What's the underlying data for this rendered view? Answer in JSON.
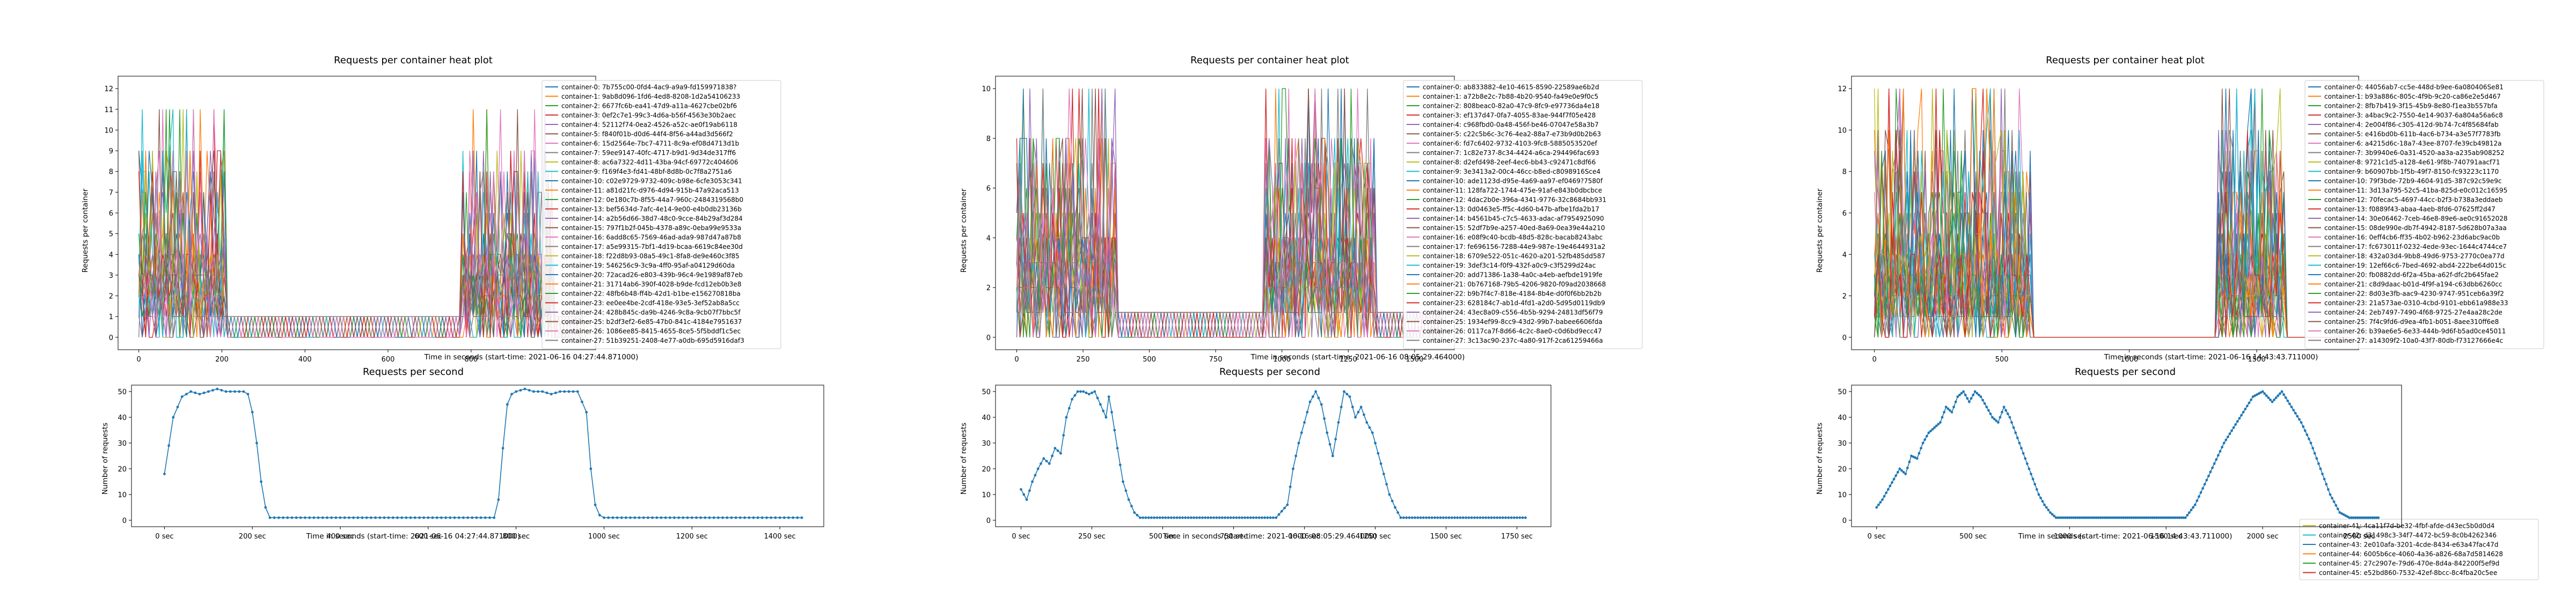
{
  "figures": [
    {
      "heat_title": "Requests per container heat plot",
      "heat_ylabel": "Requests per container",
      "heat_xlabel": "Time in seconds (start-time: 2021-06-16 04:27:44.871000)",
      "rps_title": "Requests per second",
      "rps_ylabel": "Number of requests",
      "rps_xlabel": "Time in seconds (start-time: 2021-06-16 04:27:44.871000)",
      "legend": [
        "container-0: 7b755c00-0fd4-4ac9-a9a9-fd159971838?",
        "container-1: 9ab8d096-1fd6-4ed8-8208-1d2a54106233",
        "container-2: 6677fc6b-ea41-47d9-a11a-4627cbe02bf6",
        "container-3: 0ef2c7e1-99c3-4d6a-b56f-4563e30b2aec",
        "container-4: 52112f74-0ea2-4526-a52c-ae0f19ab6118",
        "container-5: f840f01b-d0d6-44f4-8f56-a44ad3d566f2",
        "container-6: 15d2564e-7bc7-4711-8c9a-ef08d4713d1b",
        "container-7: 59ee9147-40fc-4717-b9d1-9d34de317ff6",
        "container-8: ac6a7322-4d11-43ba-94cf-69772c404606",
        "container-9: f169f4e3-fd41-48bf-8d8b-0c7f8a2751a6",
        "container-10: c02e9729-9732-409c-b98e-6cfe3053c341",
        "container-11: a81d21fc-d976-4d94-915b-47a92aca513",
        "container-12: 0e180c7b-8f55-44a7-960c-2484319568b0",
        "container-13: bef5634d-7afc-4e14-9e00-e4b0db23136b",
        "container-14: a2b56d66-38d7-48c0-9cce-84b29af3d284",
        "container-15: 797f1b2f-045b-4378-a89c-0eba99e9533a",
        "container-16: 6add8c65-7569-46ad-ada9-987d47a87b8",
        "container-17: a5e99315-7bf1-4d19-bcaa-6619c84ee30d",
        "container-18: f22d8b93-08a5-49c1-8fa8-de9e460c3f85",
        "container-19: 546256c9-3c9a-4ff0-95af-a04129d60da",
        "container-20: 72acad26-e803-439b-96c4-9e1989af87eb",
        "container-21: 31714ab6-390f-4028-b9de-fcd12eb0b3e8",
        "container-22: 48fb6b48-ff4b-42d1-b1be-e156270818ba",
        "container-23: ee0ee4be-2cdf-418e-93e5-3ef52ab8a5cc",
        "container-24: 428b845c-da9b-4246-9c8a-9cb07f7bbc5f",
        "container-25: b2df3ef2-6e85-47b0-841c-4184e7951637",
        "container-26: 1086ee85-8415-4655-8ce5-5f5bddf1c5ec",
        "container-27: 51b39251-2408-4e77-a0db-695d5916daf3"
      ],
      "axes": {
        "heat_x_ticks": [
          "0",
          "200",
          "400",
          "600",
          "800"
        ],
        "heat_y_ticks": [
          "0",
          "1",
          "2",
          "3",
          "4",
          "5",
          "6",
          "7",
          "8",
          "9",
          "10",
          "11",
          "12"
        ],
        "rps_x_ticks": [
          "0 sec",
          "200 sec",
          "400 sec",
          "600 sec",
          "800 sec",
          "1000 sec",
          "1200 sec",
          "1400 sec"
        ],
        "rps_y_ticks": [
          "0",
          "10",
          "20",
          "30",
          "40",
          "50"
        ]
      }
    },
    {
      "heat_title": "Requests per container heat plot",
      "heat_ylabel": "Requests per container",
      "heat_xlabel": "Time in seconds (start-time: 2021-06-16 08:05:29.464000)",
      "rps_title": "Requests per second",
      "rps_ylabel": "Number of requests",
      "rps_xlabel": "Time in seconds (start-time: 2021-06-16 08:05:29.464000)",
      "legend": [
        "container-0: ab833882-4e10-4615-8590-22589ae6b2d",
        "container-1: a72b8e2c-7b88-4b20-9540-fa49e0e9f0c5",
        "container-2: 808beac0-82a0-47c9-8fc9-e97736da4e18",
        "container-3: ef137d47-0fa7-4055-83ae-944f7f05e428",
        "container-4: c968fbd0-0a48-456f-be46-07047e58a3b7",
        "container-5: c22c5b6c-3c76-4ea2-88a7-e73b9d0b2b63",
        "container-6: fd7c6402-9732-4103-9fc8-5885053520ef",
        "container-7: 1c82e737-8c34-4424-a6ca-294496fac693",
        "container-8: d2efd498-2eef-4ec6-bb43-c92471c8df66",
        "container-9: 3e3413a2-00c4-46cc-b8ed-c8098916Sce4",
        "container-10: ade1123d-d95e-4a69-aa97-ef0469?7580f",
        "container-11: 128fa722-1744-475e-91af-e843b0dbcbce",
        "container-12: 4dac2b0e-396a-4341-9776-32c8684bb931",
        "container-13: 0d0463e5-ff5c-4d60-b47b-afbe1fda2b17",
        "container-14: b4561b45-c7c5-4633-adac-af7954925090",
        "container-15: 52df7b9e-a257-40ed-8a69-0ea39e44a210",
        "container-16: e08f9c40-bcdb-48d5-828c-bacab8243abc",
        "container-17: fe696156-7288-44e9-987e-19e4644931a2",
        "container-18: 6709e522-051c-4620-a201-52fb485dd587",
        "container-19: 3def3c14-f0f9-432f-a0c9-c3f5299d24ac",
        "container-20: add71386-1a38-4a0c-a4eb-aefbde1919fe",
        "container-21: 0b767168-79b5-4206-9820-f09ad2038668",
        "container-22: b9b7f4c7-818e-4184-8b4e-d0f0f6bb2b2b",
        "container-23: 628184c7-ab1d-4fd1-a2d0-5d95d0119db9",
        "container-24: 43ec8a09-c556-4b5b-9294-24813df56f79",
        "container-25: 1934ef99-8cc9-43d2-99b7-babee6606fda",
        "container-26: 0117ca7f-8d66-4c2c-8ae0-c0d6bd9ecc47",
        "container-27: 3c13ac90-237c-4a80-917f-2ca61259466a"
      ],
      "axes": {
        "heat_x_ticks": [
          "0",
          "250",
          "500",
          "750",
          "1000",
          "1250",
          "1500"
        ],
        "heat_y_ticks": [
          "0",
          "2",
          "4",
          "6",
          "8",
          "10"
        ],
        "rps_x_ticks": [
          "0 sec",
          "250 sec",
          "500 sec",
          "750 sec",
          "1000 sec",
          "1250 sec",
          "1500 sec",
          "1750 sec"
        ],
        "rps_y_ticks": [
          "0",
          "10",
          "20",
          "30",
          "40",
          "50"
        ]
      }
    },
    {
      "heat_title": "Requests per container heat plot",
      "heat_ylabel": "Requests per container",
      "heat_xlabel": "Time in seconds (start-time: 2021-06-16 14:43:43.711000)",
      "rps_title": "Requests per second",
      "rps_ylabel": "Number of requests",
      "rps_xlabel": "Time in seconds (start-time: 2021-06-16 14:43:43.711000)",
      "legend": [
        "container-0: 44056ab7-cc5e-448d-b9ee-6a080406Se81",
        "container-1: b93a886c-805c-4f9b-9c20-ca86e2e5d467",
        "container-2: 8fb7b419-3f15-45b9-8e80-f1ea3b557bfa",
        "container-3: a4bac9c2-7550-4e14-9037-6a804a56a6c8",
        "container-4: 2e004f86-c305-412d-9b74-7c4f85684fab",
        "container-5: e416bd0b-611b-4ac6-b734-a3e57f7783fb",
        "container-6: a4215d6c-18a7-43ee-8707-fe39cb49812a",
        "container-7: 3b9940e6-0a31-4520-aa3a-a235ab908252",
        "container-8: 9721c1d5-a128-4e61-9f8b-740791aacf71",
        "container-9: b60907bb-1f5b-49f7-8150-fc93223c1170",
        "container-10: 79f3bde-72b9-4604-91d5-387c92c59e9c",
        "container-11: 3d13a795-52c5-41ba-825d-e0c012c16595",
        "container-12: 70fecac5-4697-44cc-b2f3-b738a3eddaeb",
        "container-13: f0889f43-abaa-4aeb-8fd6-07625ff2d47",
        "container-14: 30e06462-7ceb-46e8-89e6-ae0c91652028",
        "container-15: 08de990e-db7f-4942-8187-5d628b07a3aa",
        "container-16: 0eff4cb6-ff35-4b02-b962-23d6abc9ac0b",
        "container-17: fc673011f-0232-4ede-93ec-1644c4744ce7",
        "container-18: 432a03d4-9bb8-49d6-9753-2770c0ea77d",
        "container-19: 12ef66c6-7bed-4692-abd4-222be64d015c",
        "container-20: fb0882dd-6f2a-45ba-a62f-dfc2b645fae2",
        "container-21: c8d9daac-b01d-4f9f-a194-c63dbb6260cc",
        "container-22: 8d03e3fb-aac9-4230-9747-951ceb6a39f2",
        "container-23: 21a573ae-0310-4cbd-9101-ebb61a988e33",
        "container-24: 2eb7497-7490-4f68-9725-27e4aa28c2de",
        "container-25: 7f4c9fd6-d9ea-4fb1-b051-8aee310ff6e8",
        "container-26: b39ae6e5-6e33-444b-9d6f-b5ad0ce45011",
        "container-27: a14309f2-10a0-43f7-80db-f73127666e4c",
        "container-41: 4ca11f7d-be32-4fbf-afde-d43ec5b0d0d4",
        "container-42: d31498c3-34f7-4472-bc59-8c0b4262346",
        "container-43: 2e010afa-3201-4cde-8434-e63a47fac47d",
        "container-44: 6005b6ce-4060-4a36-a826-68a7d5814628",
        "container-45: 27c2907e-79d6-470e-8d4a-842200f5ef9d",
        "container-45: e52bd860-7532-42ef-8bcc-8c4fba20c5ee"
      ],
      "axes": {
        "heat_x_ticks": [
          "0",
          "500",
          "1000",
          "1500"
        ],
        "heat_y_ticks": [
          "0",
          "2",
          "4",
          "6",
          "8",
          "10",
          "12"
        ],
        "rps_x_ticks": [
          "0 sec",
          "500 sec",
          "1000 sec",
          "1500 sec",
          "2000 sec",
          "2500 sec"
        ],
        "rps_y_ticks": [
          "0",
          "10",
          "20",
          "30",
          "40",
          "50"
        ]
      }
    }
  ],
  "colors": [
    "#1f77b4",
    "#ff7f0e",
    "#2ca02c",
    "#d62728",
    "#9467bd",
    "#8c564b",
    "#e377c2",
    "#7f7f7f",
    "#bcbd22",
    "#17becf"
  ],
  "chart_data": [
    {
      "type": "line",
      "title": "Requests per container heat plot",
      "xlabel": "Time in seconds (start-time: 2021-06-16 04:27:44.871000)",
      "ylabel": "Requests per container",
      "xlim": [
        -50,
        1100
      ],
      "ylim": [
        -0.6,
        12.6
      ],
      "series_count": 28,
      "profile": {
        "active_ranges": [
          [
            0,
            210
          ],
          [
            780,
            1000
          ]
        ],
        "baseline": 1,
        "peak": 11
      },
      "legend_placement": "top-right"
    },
    {
      "type": "line",
      "title": "Requests per second",
      "xlabel": "Time in seconds (start-time: 2021-06-16 04:27:44.871000)",
      "ylabel": "Number of requests",
      "xlim": [
        -75,
        1500
      ],
      "ylim": [
        -2.5,
        52.5
      ],
      "markers": true,
      "points": [
        [
          0,
          18
        ],
        [
          20,
          40
        ],
        [
          40,
          48
        ],
        [
          60,
          50
        ],
        [
          80,
          49
        ],
        [
          100,
          50
        ],
        [
          120,
          51
        ],
        [
          140,
          50
        ],
        [
          160,
          50
        ],
        [
          180,
          50
        ],
        [
          190,
          49
        ],
        [
          200,
          42
        ],
        [
          210,
          30
        ],
        [
          220,
          15
        ],
        [
          230,
          5
        ],
        [
          240,
          1
        ],
        [
          260,
          1
        ],
        [
          300,
          1
        ],
        [
          400,
          1
        ],
        [
          500,
          1
        ],
        [
          600,
          1
        ],
        [
          700,
          1
        ],
        [
          750,
          1
        ],
        [
          760,
          8
        ],
        [
          770,
          28
        ],
        [
          780,
          45
        ],
        [
          790,
          49
        ],
        [
          800,
          50
        ],
        [
          820,
          51
        ],
        [
          840,
          50
        ],
        [
          860,
          50
        ],
        [
          880,
          49
        ],
        [
          900,
          50
        ],
        [
          920,
          50
        ],
        [
          940,
          50
        ],
        [
          960,
          42
        ],
        [
          970,
          20
        ],
        [
          980,
          6
        ],
        [
          990,
          2
        ],
        [
          1000,
          1
        ],
        [
          1100,
          1
        ],
        [
          1200,
          1
        ],
        [
          1300,
          1
        ],
        [
          1400,
          1
        ],
        [
          1450,
          1
        ]
      ]
    },
    {
      "type": "line",
      "title": "Requests per container heat plot",
      "xlabel": "Time in seconds (start-time: 2021-06-16 08:05:29.464000)",
      "ylabel": "Requests per container",
      "xlim": [
        -80,
        1650
      ],
      "ylim": [
        -0.5,
        10.5
      ],
      "series_count": 28,
      "profile": {
        "active_ranges": [
          [
            0,
            380
          ],
          [
            930,
            1350
          ]
        ],
        "baseline": 1,
        "peak": 10
      },
      "legend_placement": "top-right"
    },
    {
      "type": "line",
      "title": "Requests per second",
      "xlabel": "Time in seconds (start-time: 2021-06-16 08:05:29.464000)",
      "ylabel": "Number of requests",
      "xlim": [
        -90,
        1870
      ],
      "ylim": [
        -2.5,
        52.5
      ],
      "markers": true,
      "points": [
        [
          0,
          12
        ],
        [
          20,
          8
        ],
        [
          40,
          15
        ],
        [
          60,
          20
        ],
        [
          80,
          24
        ],
        [
          100,
          22
        ],
        [
          120,
          28
        ],
        [
          140,
          26
        ],
        [
          160,
          40
        ],
        [
          180,
          47
        ],
        [
          200,
          50
        ],
        [
          220,
          50
        ],
        [
          240,
          49
        ],
        [
          260,
          50
        ],
        [
          280,
          45
        ],
        [
          300,
          40
        ],
        [
          310,
          48
        ],
        [
          320,
          42
        ],
        [
          340,
          28
        ],
        [
          360,
          15
        ],
        [
          380,
          8
        ],
        [
          400,
          3
        ],
        [
          420,
          1
        ],
        [
          500,
          1
        ],
        [
          600,
          1
        ],
        [
          700,
          1
        ],
        [
          800,
          1
        ],
        [
          900,
          1
        ],
        [
          940,
          6
        ],
        [
          960,
          20
        ],
        [
          980,
          30
        ],
        [
          1000,
          38
        ],
        [
          1020,
          46
        ],
        [
          1040,
          50
        ],
        [
          1060,
          45
        ],
        [
          1080,
          34
        ],
        [
          1100,
          25
        ],
        [
          1120,
          38
        ],
        [
          1140,
          50
        ],
        [
          1160,
          48
        ],
        [
          1180,
          40
        ],
        [
          1200,
          44
        ],
        [
          1220,
          38
        ],
        [
          1240,
          34
        ],
        [
          1260,
          26
        ],
        [
          1280,
          18
        ],
        [
          1300,
          10
        ],
        [
          1320,
          5
        ],
        [
          1340,
          1
        ],
        [
          1400,
          1
        ],
        [
          1500,
          1
        ],
        [
          1600,
          1
        ],
        [
          1700,
          1
        ],
        [
          1780,
          1
        ]
      ]
    },
    {
      "type": "line",
      "title": "Requests per container heat plot",
      "xlabel": "Time in seconds (start-time: 2021-06-16 14:43:43.711000)",
      "ylabel": "Requests per container",
      "xlim": [
        -90,
        1900
      ],
      "ylim": [
        -0.6,
        12.6
      ],
      "series_count": 34,
      "profile": {
        "active_ranges": [
          [
            0,
            620
          ],
          [
            1350,
            1620
          ]
        ],
        "baseline": 0,
        "peak": 12
      },
      "legend_placement": "top-right"
    },
    {
      "type": "line",
      "title": "Requests per second",
      "xlabel": "Time in seconds (start-time: 2021-06-16 14:43:43.711000)",
      "ylabel": "Number of requests",
      "xlim": [
        -130,
        2720
      ],
      "ylim": [
        -2.5,
        52.5
      ],
      "markers": true,
      "points": [
        [
          0,
          5
        ],
        [
          30,
          8
        ],
        [
          60,
          12
        ],
        [
          90,
          16
        ],
        [
          120,
          20
        ],
        [
          150,
          18
        ],
        [
          180,
          25
        ],
        [
          210,
          24
        ],
        [
          240,
          30
        ],
        [
          270,
          34
        ],
        [
          300,
          36
        ],
        [
          330,
          38
        ],
        [
          360,
          44
        ],
        [
          390,
          42
        ],
        [
          420,
          48
        ],
        [
          450,
          50
        ],
        [
          480,
          46
        ],
        [
          510,
          50
        ],
        [
          540,
          48
        ],
        [
          570,
          44
        ],
        [
          600,
          40
        ],
        [
          630,
          38
        ],
        [
          660,
          44
        ],
        [
          690,
          40
        ],
        [
          720,
          34
        ],
        [
          750,
          28
        ],
        [
          780,
          22
        ],
        [
          810,
          16
        ],
        [
          840,
          10
        ],
        [
          870,
          6
        ],
        [
          900,
          3
        ],
        [
          930,
          1
        ],
        [
          1000,
          1
        ],
        [
          1100,
          1
        ],
        [
          1200,
          1
        ],
        [
          1300,
          1
        ],
        [
          1600,
          1
        ],
        [
          1650,
          6
        ],
        [
          1700,
          14
        ],
        [
          1750,
          22
        ],
        [
          1800,
          30
        ],
        [
          1850,
          36
        ],
        [
          1900,
          42
        ],
        [
          1950,
          48
        ],
        [
          2000,
          50
        ],
        [
          2050,
          46
        ],
        [
          2100,
          50
        ],
        [
          2150,
          44
        ],
        [
          2200,
          38
        ],
        [
          2250,
          30
        ],
        [
          2300,
          20
        ],
        [
          2350,
          10
        ],
        [
          2400,
          3
        ],
        [
          2450,
          1
        ],
        [
          2500,
          1
        ],
        [
          2600,
          1
        ]
      ]
    }
  ]
}
